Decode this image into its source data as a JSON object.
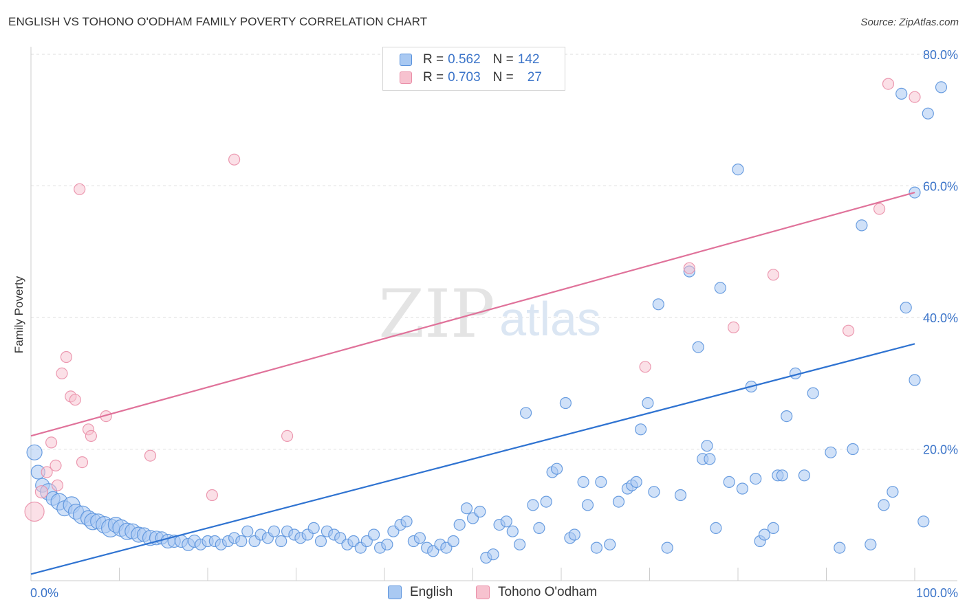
{
  "header": {
    "title": "ENGLISH VS TOHONO O'ODHAM FAMILY POVERTY CORRELATION CHART",
    "source": "Source: ZipAtlas.com"
  },
  "watermark": {
    "text_zip": "ZIP",
    "text_atlas": "atlas"
  },
  "legend": {
    "english": {
      "r_label": "R =",
      "r_value": "0.562",
      "n_label": "N =",
      "n_value": "142"
    },
    "tohono": {
      "r_label": "R =",
      "r_value": "0.703",
      "n_label": "N =",
      "n_value": "27"
    }
  },
  "bottom_legend": {
    "english": "English",
    "tohono": "Tohono O'odham"
  },
  "colors": {
    "english_fill": "#a9c9f2",
    "english_stroke": "#5b93dd",
    "english_line": "#2f73d1",
    "tohono_fill": "#f7c2cf",
    "tohono_stroke": "#ea8fa8",
    "tohono_line": "#e0729a",
    "axis_label": "#3b74c9",
    "grid": "#dddddd"
  },
  "chart_data": {
    "type": "scatter",
    "title": "ENGLISH VS TOHONO O'ODHAM FAMILY POVERTY CORRELATION CHART",
    "xlabel": "",
    "ylabel": "Family Poverty",
    "xlim": [
      0,
      100
    ],
    "ylim": [
      0,
      80
    ],
    "x_tick_labels": [
      "0.0%",
      "100.0%"
    ],
    "y_tick_values": [
      20,
      40,
      60,
      80
    ],
    "y_tick_labels": [
      "20.0%",
      "40.0%",
      "60.0%",
      "80.0%"
    ],
    "series": [
      {
        "name": "English",
        "R": 0.562,
        "N": 142,
        "trend": {
          "x": [
            0,
            100
          ],
          "y": [
            1.0,
            36.0
          ]
        },
        "points": [
          [
            0.4,
            19.5,
            11
          ],
          [
            0.8,
            16.5,
            10
          ],
          [
            1.3,
            14.5,
            10
          ],
          [
            2.0,
            13.5,
            12
          ],
          [
            2.5,
            12.5,
            10
          ],
          [
            3.2,
            12.0,
            12
          ],
          [
            3.8,
            11.0,
            11
          ],
          [
            4.6,
            11.5,
            12
          ],
          [
            5.1,
            10.5,
            11
          ],
          [
            5.8,
            10.0,
            13
          ],
          [
            6.5,
            9.5,
            11
          ],
          [
            7.0,
            9.0,
            12
          ],
          [
            7.6,
            9.0,
            11
          ],
          [
            8.3,
            8.5,
            12
          ],
          [
            9.0,
            8.0,
            13
          ],
          [
            9.6,
            8.5,
            11
          ],
          [
            10.2,
            8.0,
            12
          ],
          [
            10.9,
            7.5,
            12
          ],
          [
            11.5,
            7.5,
            11
          ],
          [
            12.2,
            7.0,
            11
          ],
          [
            12.8,
            7.0,
            10
          ],
          [
            13.5,
            6.5,
            11
          ],
          [
            14.2,
            6.5,
            10
          ],
          [
            14.8,
            6.5,
            9
          ],
          [
            15.5,
            6.0,
            10
          ],
          [
            16.2,
            6.0,
            9
          ],
          [
            17.0,
            6.0,
            9
          ],
          [
            17.8,
            5.5,
            9
          ],
          [
            18.5,
            6.0,
            9
          ],
          [
            19.2,
            5.5,
            8
          ],
          [
            20.0,
            6.0,
            8
          ],
          [
            20.8,
            6.0,
            8
          ],
          [
            21.5,
            5.5,
            8
          ],
          [
            22.3,
            6.0,
            8
          ],
          [
            23.0,
            6.5,
            8
          ],
          [
            23.8,
            6.0,
            8
          ],
          [
            24.5,
            7.5,
            8
          ],
          [
            25.3,
            6.0,
            8
          ],
          [
            26.0,
            7.0,
            8
          ],
          [
            26.8,
            6.5,
            8
          ],
          [
            27.5,
            7.5,
            8
          ],
          [
            28.3,
            6.0,
            8
          ],
          [
            29.0,
            7.5,
            8
          ],
          [
            29.8,
            7.0,
            8
          ],
          [
            30.5,
            6.5,
            8
          ],
          [
            31.3,
            7.0,
            8
          ],
          [
            32.0,
            8.0,
            8
          ],
          [
            32.8,
            6.0,
            8
          ],
          [
            33.5,
            7.5,
            8
          ],
          [
            34.3,
            7.0,
            8
          ],
          [
            35.0,
            6.5,
            8
          ],
          [
            35.8,
            5.5,
            8
          ],
          [
            36.5,
            6.0,
            8
          ],
          [
            37.3,
            5.0,
            8
          ],
          [
            38.0,
            6.0,
            8
          ],
          [
            38.8,
            7.0,
            8
          ],
          [
            39.5,
            5.0,
            8
          ],
          [
            40.3,
            5.5,
            8
          ],
          [
            41.0,
            7.5,
            8
          ],
          [
            41.8,
            8.5,
            8
          ],
          [
            42.5,
            9.0,
            8
          ],
          [
            43.3,
            6.0,
            8
          ],
          [
            44.0,
            6.5,
            8
          ],
          [
            44.8,
            5.0,
            8
          ],
          [
            45.5,
            4.5,
            8
          ],
          [
            46.3,
            5.5,
            8
          ],
          [
            47.0,
            5.0,
            8
          ],
          [
            47.8,
            6.0,
            8
          ],
          [
            48.5,
            8.5,
            8
          ],
          [
            49.3,
            11.0,
            8
          ],
          [
            50.0,
            9.5,
            8
          ],
          [
            50.8,
            10.5,
            8
          ],
          [
            51.5,
            3.5,
            8
          ],
          [
            52.3,
            4.0,
            8
          ],
          [
            53.0,
            8.5,
            8
          ],
          [
            53.8,
            9.0,
            8
          ],
          [
            54.5,
            7.5,
            8
          ],
          [
            55.3,
            5.5,
            8
          ],
          [
            56.0,
            25.5,
            8
          ],
          [
            56.8,
            11.5,
            8
          ],
          [
            57.5,
            8.0,
            8
          ],
          [
            58.3,
            12.0,
            8
          ],
          [
            59.0,
            16.5,
            8
          ],
          [
            59.5,
            17.0,
            8
          ],
          [
            60.5,
            27.0,
            8
          ],
          [
            61.0,
            6.5,
            8
          ],
          [
            61.5,
            7.0,
            8
          ],
          [
            62.5,
            15.0,
            8
          ],
          [
            63.0,
            11.5,
            8
          ],
          [
            64.0,
            5.0,
            8
          ],
          [
            64.5,
            15.0,
            8
          ],
          [
            65.5,
            5.5,
            8
          ],
          [
            66.5,
            12.0,
            8
          ],
          [
            67.5,
            14.0,
            8
          ],
          [
            68.0,
            14.5,
            8
          ],
          [
            68.5,
            15.0,
            8
          ],
          [
            69.0,
            23.0,
            8
          ],
          [
            69.8,
            27.0,
            8
          ],
          [
            70.5,
            13.5,
            8
          ],
          [
            71.0,
            42.0,
            8
          ],
          [
            72.0,
            5.0,
            8
          ],
          [
            73.5,
            13.0,
            8
          ],
          [
            74.5,
            47.0,
            8
          ],
          [
            75.5,
            35.5,
            8
          ],
          [
            76.0,
            18.5,
            8
          ],
          [
            76.5,
            20.5,
            8
          ],
          [
            76.8,
            18.5,
            8
          ],
          [
            77.5,
            8.0,
            8
          ],
          [
            78.0,
            44.5,
            8
          ],
          [
            79.0,
            15.0,
            8
          ],
          [
            80.0,
            62.5,
            8
          ],
          [
            80.5,
            14.0,
            8
          ],
          [
            81.5,
            29.5,
            8
          ],
          [
            82.0,
            15.5,
            8
          ],
          [
            82.5,
            6.0,
            8
          ],
          [
            83.0,
            7.0,
            8
          ],
          [
            84.0,
            8.0,
            8
          ],
          [
            84.5,
            16.0,
            8
          ],
          [
            85.0,
            16.0,
            8
          ],
          [
            85.5,
            25.0,
            8
          ],
          [
            86.5,
            31.5,
            8
          ],
          [
            87.5,
            16.0,
            8
          ],
          [
            88.5,
            28.5,
            8
          ],
          [
            90.5,
            19.5,
            8
          ],
          [
            91.5,
            5.0,
            8
          ],
          [
            93.0,
            20.0,
            8
          ],
          [
            94.0,
            54.0,
            8
          ],
          [
            95.0,
            5.5,
            8
          ],
          [
            96.5,
            11.5,
            8
          ],
          [
            97.5,
            13.5,
            8
          ],
          [
            98.5,
            74.0,
            8
          ],
          [
            99.0,
            41.5,
            8
          ],
          [
            100.0,
            30.5,
            8
          ],
          [
            101.0,
            9.0,
            8
          ],
          [
            101.5,
            71.0,
            8
          ],
          [
            103.0,
            75.0,
            8
          ],
          [
            100.0,
            59.0,
            8
          ]
        ]
      },
      {
        "name": "Tohono O'odham",
        "R": 0.703,
        "N": 27,
        "trend": {
          "x": [
            0,
            100
          ],
          "y": [
            22.0,
            59.0
          ]
        },
        "points": [
          [
            0.4,
            10.5,
            14
          ],
          [
            1.2,
            13.5,
            9
          ],
          [
            1.8,
            16.5,
            8
          ],
          [
            2.3,
            21.0,
            8
          ],
          [
            2.8,
            17.5,
            8
          ],
          [
            3.0,
            14.5,
            8
          ],
          [
            3.5,
            31.5,
            8
          ],
          [
            4.0,
            34.0,
            8
          ],
          [
            4.5,
            28.0,
            8
          ],
          [
            5.0,
            27.5,
            8
          ],
          [
            5.5,
            59.5,
            8
          ],
          [
            5.8,
            18.0,
            8
          ],
          [
            6.5,
            23.0,
            8
          ],
          [
            6.8,
            22.0,
            8
          ],
          [
            8.5,
            25.0,
            8
          ],
          [
            13.5,
            19.0,
            8
          ],
          [
            20.5,
            13.0,
            8
          ],
          [
            23.0,
            64.0,
            8
          ],
          [
            29.0,
            22.0,
            8
          ],
          [
            69.5,
            32.5,
            8
          ],
          [
            74.5,
            47.5,
            8
          ],
          [
            79.5,
            38.5,
            8
          ],
          [
            84.0,
            46.5,
            8
          ],
          [
            92.5,
            38.0,
            8
          ],
          [
            96.0,
            56.5,
            8
          ],
          [
            97.0,
            75.5,
            8
          ],
          [
            100.0,
            73.5,
            8
          ]
        ]
      }
    ]
  }
}
